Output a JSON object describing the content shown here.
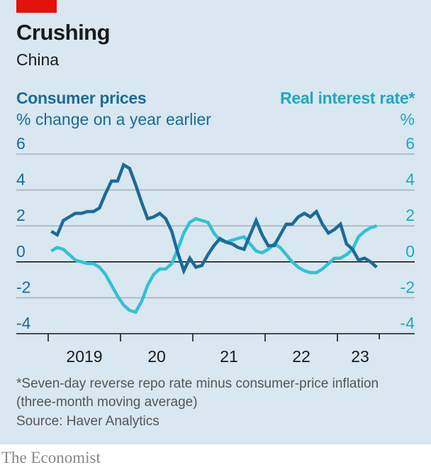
{
  "header": {
    "title": "Crushing",
    "subtitle": "China",
    "left_series_title": "Consumer prices",
    "left_series_unit": "% change on a year earlier",
    "right_series_title": "Real interest rate*",
    "right_series_unit": "%"
  },
  "footer": {
    "note": "*Seven-day reverse repo rate minus consumer-price inflation (three-month moving average)",
    "source": "Source: Haver Analytics",
    "brand": "The Economist"
  },
  "colors": {
    "accent_red": "#e3120b",
    "consumer_prices": "#1b6b99",
    "real_interest_rate": "#33c1d4",
    "background": "#d9e7f0"
  },
  "chart_data": {
    "type": "line",
    "title": "Crushing",
    "subtitle": "China",
    "xlabel": "",
    "ylabel_left": "% change on a year earlier",
    "ylabel_right": "%",
    "ylim": [
      -4,
      6
    ],
    "yticks": [
      6,
      4,
      2,
      0,
      -2,
      -4
    ],
    "ytick_labels_left": [
      "6",
      "4",
      "2",
      "0",
      "-2",
      "-4"
    ],
    "ytick_labels_right": [
      "6",
      "4",
      "2",
      "0",
      "-2",
      "-4"
    ],
    "x_tick_labels": [
      "2019",
      "20",
      "21",
      "22",
      "23"
    ],
    "x_range": [
      "2019-01",
      "2023-07"
    ],
    "grid": true,
    "legend": "top-left and top-right axis titles",
    "x": [
      "2019-01",
      "2019-02",
      "2019-03",
      "2019-04",
      "2019-05",
      "2019-06",
      "2019-07",
      "2019-08",
      "2019-09",
      "2019-10",
      "2019-11",
      "2019-12",
      "2020-01",
      "2020-02",
      "2020-03",
      "2020-04",
      "2020-05",
      "2020-06",
      "2020-07",
      "2020-08",
      "2020-09",
      "2020-10",
      "2020-11",
      "2020-12",
      "2021-01",
      "2021-02",
      "2021-03",
      "2021-04",
      "2021-05",
      "2021-06",
      "2021-07",
      "2021-08",
      "2021-09",
      "2021-10",
      "2021-11",
      "2021-12",
      "2022-01",
      "2022-02",
      "2022-03",
      "2022-04",
      "2022-05",
      "2022-06",
      "2022-07",
      "2022-08",
      "2022-09",
      "2022-10",
      "2022-11",
      "2022-12",
      "2023-01",
      "2023-02",
      "2023-03",
      "2023-04",
      "2023-05",
      "2023-06",
      "2023-07"
    ],
    "series": [
      {
        "name": "Consumer prices",
        "axis": "left",
        "values": [
          1.7,
          1.5,
          2.3,
          2.5,
          2.7,
          2.7,
          2.8,
          2.8,
          3.0,
          3.8,
          4.5,
          4.5,
          5.4,
          5.2,
          4.3,
          3.3,
          2.4,
          2.5,
          2.7,
          2.4,
          1.7,
          0.5,
          -0.5,
          0.2,
          -0.3,
          -0.2,
          0.4,
          0.9,
          1.3,
          1.1,
          1.0,
          0.8,
          0.7,
          1.5,
          2.3,
          1.5,
          0.9,
          0.9,
          1.5,
          2.1,
          2.1,
          2.5,
          2.7,
          2.5,
          2.8,
          2.1,
          1.6,
          1.8,
          2.1,
          1.0,
          0.7,
          0.1,
          0.2,
          0.0,
          -0.3
        ]
      },
      {
        "name": "Real interest rate*",
        "axis": "right",
        "values": [
          0.6,
          0.8,
          0.7,
          0.4,
          0.1,
          0.0,
          -0.1,
          -0.1,
          -0.3,
          -0.7,
          -1.3,
          -1.9,
          -2.4,
          -2.7,
          -2.8,
          -2.2,
          -1.3,
          -0.7,
          -0.4,
          -0.4,
          -0.1,
          0.7,
          1.6,
          2.2,
          2.4,
          2.3,
          2.2,
          1.6,
          1.2,
          1.1,
          1.2,
          1.3,
          1.4,
          1.0,
          0.6,
          0.5,
          0.7,
          1.0,
          0.8,
          0.4,
          0.0,
          -0.3,
          -0.5,
          -0.6,
          -0.6,
          -0.4,
          -0.1,
          0.2,
          0.2,
          0.4,
          0.7,
          1.4,
          1.7,
          1.9,
          2.0
        ]
      }
    ]
  }
}
